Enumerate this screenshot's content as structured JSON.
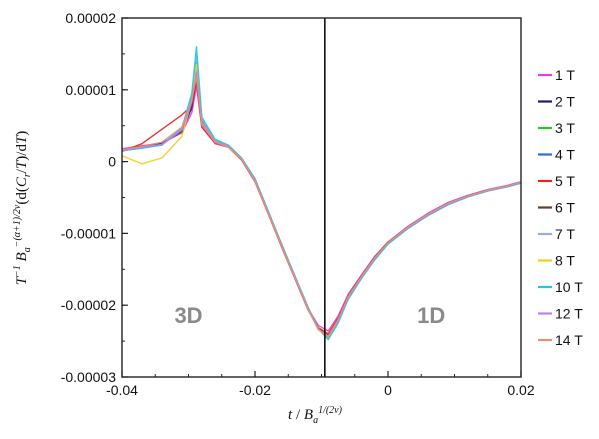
{
  "chart_data": {
    "type": "line",
    "xlabel": "t / B_a^{1/(2ν)}",
    "ylabel": "T^{-1} B_a^{-(α+1)/2ν} (d(C_r/T)/dT)",
    "xlim": [
      -0.04,
      0.02
    ],
    "ylim": [
      -3e-05,
      2e-05
    ],
    "x_ticks": [
      "-0.04",
      "-0.02",
      "0",
      "0.02"
    ],
    "x_tick_values": [
      -0.04,
      -0.02,
      0,
      0.02
    ],
    "y_ticks": [
      "0.00002",
      "0.00001",
      "0",
      "-0.00001",
      "-0.00002",
      "-0.00003"
    ],
    "y_tick_values": [
      2e-05,
      1e-05,
      0,
      -1e-05,
      -2e-05,
      -3e-05
    ],
    "vertical_line_x": -0.0095,
    "region_labels": [
      {
        "text": "3D",
        "x": -0.03,
        "y": -2.25e-05
      },
      {
        "text": "1D",
        "x": 0.0065,
        "y": -2.25e-05
      }
    ],
    "grid": false,
    "legend_position": "right",
    "x": [
      -0.04,
      -0.037,
      -0.034,
      -0.031,
      -0.0295,
      -0.0288,
      -0.028,
      -0.026,
      -0.024,
      -0.022,
      -0.02,
      -0.018,
      -0.016,
      -0.014,
      -0.012,
      -0.0105,
      -0.009,
      -0.0075,
      -0.006,
      -0.004,
      -0.002,
      0,
      0.003,
      0.006,
      0.009,
      0.012,
      0.015,
      0.018,
      0.02
    ],
    "series": [
      {
        "name": "1 T",
        "color": "#e040e0",
        "values": [
          1.8e-06,
          2.2e-06,
          2.6e-06,
          4e-06,
          6.8e-06,
          1.05e-05,
          4.8e-06,
          2.5e-06,
          2e-06,
          3e-07,
          -2.7e-06,
          -7.2e-06,
          -1.18e-05,
          -1.62e-05,
          -2.05e-05,
          -2.28e-05,
          -2.36e-05,
          -2.15e-05,
          -1.85e-05,
          -1.58e-05,
          -1.32e-05,
          -1.12e-05,
          -9e-06,
          -7.2e-06,
          -5.7e-06,
          -4.7e-06,
          -3.9e-06,
          -3.3e-06,
          -2.8e-06
        ]
      },
      {
        "name": "2 T",
        "color": "#1a1a6e",
        "values": [
          1.7e-06,
          2.1e-06,
          2.5e-06,
          4.2e-06,
          7.5e-06,
          1.18e-05,
          5.2e-06,
          2.7e-06,
          2.2e-06,
          4e-07,
          -2.5e-06,
          -7e-06,
          -1.16e-05,
          -1.6e-05,
          -2.05e-05,
          -2.32e-05,
          -2.42e-05,
          -2.2e-05,
          -1.88e-05,
          -1.6e-05,
          -1.34e-05,
          -1.13e-05,
          -9.1e-06,
          -7.3e-06,
          -5.8e-06,
          -4.8e-06,
          -4e-06,
          -3.4e-06,
          -2.9e-06
        ]
      },
      {
        "name": "3 T",
        "color": "#22cc22",
        "values": [
          1.6e-06,
          2e-06,
          2.4e-06,
          4.4e-06,
          8.2e-06,
          1.28e-05,
          5.5e-06,
          2.8e-06,
          2.1e-06,
          3e-07,
          -2.6e-06,
          -7.1e-06,
          -1.17e-05,
          -1.61e-05,
          -2.06e-05,
          -2.34e-05,
          -2.45e-05,
          -2.22e-05,
          -1.9e-05,
          -1.61e-05,
          -1.35e-05,
          -1.14e-05,
          -9.2e-06,
          -7.4e-06,
          -5.9e-06,
          -4.9e-06,
          -4e-06,
          -3.4e-06,
          -2.9e-06
        ]
      },
      {
        "name": "4 T",
        "color": "#3366ee",
        "values": [
          1.5e-06,
          1.9e-06,
          2.4e-06,
          4.6e-06,
          8.8e-06,
          1.38e-05,
          5.8e-06,
          2.9e-06,
          2.2e-06,
          4e-07,
          -2.4e-06,
          -7e-06,
          -1.15e-05,
          -1.6e-05,
          -2.04e-05,
          -2.33e-05,
          -2.47e-05,
          -2.24e-05,
          -1.91e-05,
          -1.62e-05,
          -1.36e-05,
          -1.14e-05,
          -9.3e-06,
          -7.5e-06,
          -6e-06,
          -4.9e-06,
          -4.1e-06,
          -3.5e-06,
          -3e-06
        ]
      },
      {
        "name": "5 T",
        "color": "#ee2222",
        "values": [
          1.4e-06,
          2.5e-06,
          4.5e-06,
          6.5e-06,
          7.8e-06,
          1.12e-05,
          4.8e-06,
          2.6e-06,
          2e-06,
          2e-07,
          -2.8e-06,
          -7.3e-06,
          -1.19e-05,
          -1.63e-05,
          -2.07e-05,
          -2.31e-05,
          -2.4e-05,
          -2.18e-05,
          -1.87e-05,
          -1.59e-05,
          -1.33e-05,
          -1.12e-05,
          -9.1e-06,
          -7.3e-06,
          -5.8e-06,
          -4.8e-06,
          -4e-06,
          -3.4e-06,
          -2.9e-06
        ]
      },
      {
        "name": "6 T",
        "color": "#6b3a2a",
        "values": [
          1.6e-06,
          2e-06,
          2.4e-06,
          4.3e-06,
          7.9e-06,
          1.22e-05,
          5.3e-06,
          2.8e-06,
          2.1e-06,
          4e-07,
          -2.6e-06,
          -7.1e-06,
          -1.17e-05,
          -1.61e-05,
          -2.05e-05,
          -2.32e-05,
          -2.43e-05,
          -2.21e-05,
          -1.89e-05,
          -1.6e-05,
          -1.34e-05,
          -1.13e-05,
          -9.2e-06,
          -7.4e-06,
          -5.9e-06,
          -4.8e-06,
          -4e-06,
          -3.4e-06,
          -2.9e-06
        ]
      },
      {
        "name": "7 T",
        "color": "#9aa8ee",
        "values": [
          1.5e-06,
          1.9e-06,
          2.3e-06,
          4.5e-06,
          9.2e-06,
          1.48e-05,
          6e-06,
          3e-06,
          2.2e-06,
          4e-07,
          -2.5e-06,
          -7e-06,
          -1.16e-05,
          -1.6e-05,
          -2.04e-05,
          -2.33e-05,
          -2.46e-05,
          -2.23e-05,
          -1.9e-05,
          -1.61e-05,
          -1.35e-05,
          -1.14e-05,
          -9.2e-06,
          -7.4e-06,
          -5.9e-06,
          -4.9e-06,
          -4e-06,
          -3.4e-06,
          -2.9e-06
        ]
      },
      {
        "name": "8 T",
        "color": "#f0d020",
        "values": [
          8e-07,
          -3e-07,
          5e-07,
          3.5e-06,
          8.5e-06,
          1.35e-05,
          5.5e-06,
          2.8e-06,
          2e-06,
          3e-07,
          -2.6e-06,
          -7.1e-06,
          -1.17e-05,
          -1.61e-05,
          -2.05e-05,
          -2.34e-05,
          -2.46e-05,
          -2.22e-05,
          -1.9e-05,
          -1.61e-05,
          -1.35e-05,
          -1.14e-05,
          -9.2e-06,
          -7.4e-06,
          -5.9e-06,
          -4.9e-06,
          -4e-06,
          -3.4e-06,
          -2.9e-06
        ]
      },
      {
        "name": "10 T",
        "color": "#22c8e0",
        "values": [
          1.5e-06,
          1.9e-06,
          2.3e-06,
          4.7e-06,
          9.5e-06,
          1.6e-05,
          6.2e-06,
          3.1e-06,
          2.3e-06,
          5e-07,
          -2.4e-06,
          -6.9e-06,
          -1.15e-05,
          -1.59e-05,
          -2.03e-05,
          -2.32e-05,
          -2.48e-05,
          -2.25e-05,
          -1.92e-05,
          -1.63e-05,
          -1.37e-05,
          -1.15e-05,
          -9.3e-06,
          -7.5e-06,
          -6e-06,
          -4.9e-06,
          -4.1e-06,
          -3.5e-06,
          -3e-06
        ]
      },
      {
        "name": "12 T",
        "color": "#c080f0",
        "values": [
          1.6e-06,
          2e-06,
          2.4e-06,
          4.4e-06,
          8.3e-06,
          1.25e-05,
          5.4e-06,
          2.8e-06,
          2.1e-06,
          3e-07,
          -2.6e-06,
          -7.1e-06,
          -1.17e-05,
          -1.61e-05,
          -2.05e-05,
          -2.33e-05,
          -2.44e-05,
          -2.21e-05,
          -1.89e-05,
          -1.61e-05,
          -1.35e-05,
          -1.13e-05,
          -9.2e-06,
          -7.4e-06,
          -5.9e-06,
          -4.8e-06,
          -4e-06,
          -3.4e-06,
          -2.9e-06
        ]
      },
      {
        "name": "14 T",
        "color": "#e89070",
        "values": [
          1.7e-06,
          2.1e-06,
          2.7e-06,
          4.8e-06,
          8.6e-06,
          1.18e-05,
          5.1e-06,
          2.7e-06,
          2e-06,
          3e-07,
          -2.7e-06,
          -7.2e-06,
          -1.18e-05,
          -1.62e-05,
          -2.06e-05,
          -2.33e-05,
          -2.43e-05,
          -2.2e-05,
          -1.88e-05,
          -1.6e-05,
          -1.34e-05,
          -1.13e-05,
          -9.1e-06,
          -7.3e-06,
          -5.8e-06,
          -4.8e-06,
          -4e-06,
          -3.4e-06,
          -2.9e-06
        ]
      }
    ]
  }
}
